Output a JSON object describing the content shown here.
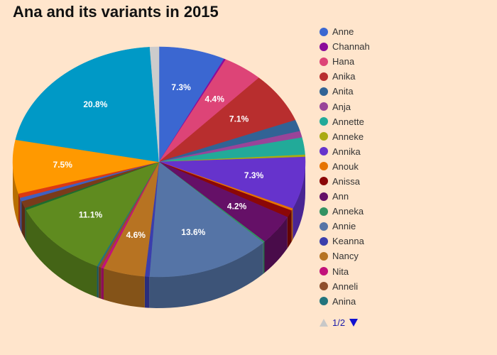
{
  "chart_data": {
    "type": "pie",
    "title": "Ana and its variants in 2015",
    "legend_position": "right",
    "legend_page": "1/2",
    "slices": [
      {
        "name": "Anne",
        "value": 7.3,
        "color": "#3b67d1",
        "label": "7.3%"
      },
      {
        "name": "Channah",
        "value": 0.2,
        "color": "#8b0b9a",
        "label": ""
      },
      {
        "name": "Hana",
        "value": 4.4,
        "color": "#dd4477",
        "label": "4.4%"
      },
      {
        "name": "Anika",
        "value": 7.1,
        "color": "#b82e2e",
        "label": "7.1%"
      },
      {
        "name": "Anita",
        "value": 1.6,
        "color": "#316395",
        "label": ""
      },
      {
        "name": "Anja",
        "value": 0.9,
        "color": "#994499",
        "label": ""
      },
      {
        "name": "Annette",
        "value": 2.4,
        "color": "#22aa99",
        "label": ""
      },
      {
        "name": "Anneke",
        "value": 0.3,
        "color": "#aaaa11",
        "label": ""
      },
      {
        "name": "Annika",
        "value": 7.3,
        "color": "#6633cc",
        "label": "7.3%"
      },
      {
        "name": "Anouk",
        "value": 0.3,
        "color": "#e67300",
        "label": ""
      },
      {
        "name": "Anissa",
        "value": 1.0,
        "color": "#8b0707",
        "label": ""
      },
      {
        "name": "Ann",
        "value": 4.2,
        "color": "#651067",
        "label": "4.2%"
      },
      {
        "name": "Anneka",
        "value": 0.2,
        "color": "#329262",
        "label": ""
      },
      {
        "name": "Annie",
        "value": 13.6,
        "color": "#5574a6",
        "label": "13.6%"
      },
      {
        "name": "Keanna",
        "value": 0.5,
        "color": "#3b3eac",
        "label": ""
      },
      {
        "name": "Nancy",
        "value": 4.6,
        "color": "#b77322",
        "label": "4.6%"
      },
      {
        "name": "Nita",
        "value": 0.3,
        "color": "#c2127a",
        "label": ""
      },
      {
        "name": "Anneli",
        "value": 0.3,
        "color": "#8f4f2b",
        "label": ""
      },
      {
        "name": "Anina",
        "value": 0.2,
        "color": "#22747d",
        "label": ""
      },
      {
        "name": "",
        "value": 11.1,
        "color": "#5f8b1f",
        "label": "11.1%"
      },
      {
        "name": "",
        "value": 0.3,
        "color": "#1d6b2e",
        "label": ""
      },
      {
        "name": "",
        "value": 1.0,
        "color": "#7a3b1a",
        "label": ""
      },
      {
        "name": "",
        "value": 0.5,
        "color": "#4060c0",
        "label": ""
      },
      {
        "name": "",
        "value": 0.6,
        "color": "#dc3912",
        "label": ""
      },
      {
        "name": "",
        "value": 7.5,
        "color": "#ff9900",
        "label": "7.5%"
      },
      {
        "name": "",
        "value": 20.8,
        "color": "#0099c6",
        "label": "20.8%"
      },
      {
        "name": "",
        "value": 1.0,
        "color": "#cccccc",
        "label": ""
      }
    ]
  }
}
